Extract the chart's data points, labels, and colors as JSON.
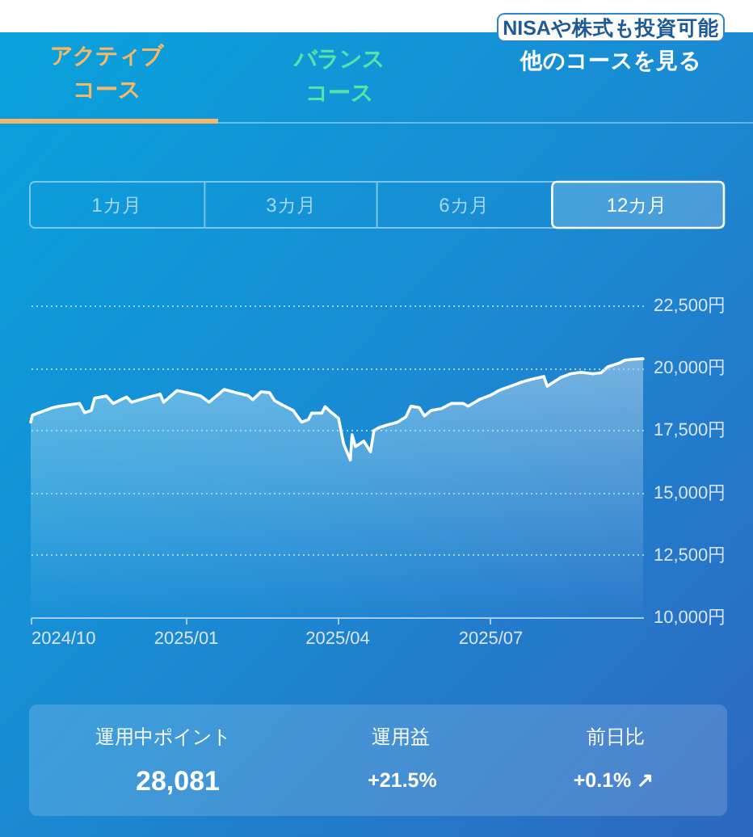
{
  "chart_data": {
    "type": "area",
    "x": [
      "2024-10-01",
      "2024-10-02",
      "2024-10-08",
      "2024-10-14",
      "2024-10-18",
      "2024-10-30",
      "2024-11-02",
      "2024-11-06",
      "2024-11-08",
      "2024-11-15",
      "2024-11-19",
      "2024-11-27",
      "2024-11-30",
      "2024-12-08",
      "2024-12-17",
      "2024-12-19",
      "2024-12-27",
      "2025-01-06",
      "2025-01-10",
      "2025-01-15",
      "2025-01-24",
      "2025-01-31",
      "2025-02-07",
      "2025-02-10",
      "2025-02-15",
      "2025-02-20",
      "2025-02-23",
      "2025-03-01",
      "2025-03-06",
      "2025-03-11",
      "2025-03-15",
      "2025-03-17",
      "2025-03-23",
      "2025-03-25",
      "2025-03-28",
      "2025-04-02",
      "2025-04-05",
      "2025-04-09",
      "2025-04-10",
      "2025-04-12",
      "2025-04-17",
      "2025-04-21",
      "2025-04-23",
      "2025-04-26",
      "2025-05-01",
      "2025-05-07",
      "2025-05-12",
      "2025-05-15",
      "2025-05-20",
      "2025-05-23",
      "2025-05-27",
      "2025-06-02",
      "2025-06-08",
      "2025-06-15",
      "2025-06-18",
      "2025-06-25",
      "2025-07-01",
      "2025-07-07",
      "2025-07-14",
      "2025-07-20",
      "2025-07-26",
      "2025-08-02",
      "2025-08-04",
      "2025-08-12",
      "2025-08-18",
      "2025-08-24",
      "2025-08-31",
      "2025-09-05",
      "2025-09-09",
      "2025-09-16",
      "2025-09-19",
      "2025-09-24",
      "2025-09-30"
    ],
    "series": [
      {
        "color": "#ffffff",
        "values": [
          17820,
          18100,
          18250,
          18400,
          18460,
          18570,
          18200,
          18290,
          18780,
          18870,
          18570,
          18830,
          18620,
          18780,
          18940,
          18620,
          19090,
          18940,
          18870,
          18620,
          19130,
          19000,
          18890,
          18720,
          19040,
          19000,
          18680,
          18460,
          18290,
          17820,
          17920,
          18180,
          18180,
          18440,
          18250,
          17970,
          16950,
          16300,
          17320,
          16840,
          17060,
          16630,
          17490,
          17600,
          17710,
          17820,
          18030,
          18460,
          18400,
          18070,
          18290,
          18360,
          18570,
          18570,
          18460,
          18740,
          18890,
          19110,
          19280,
          19430,
          19540,
          19650,
          19260,
          19610,
          19760,
          19820,
          19760,
          19800,
          20040,
          20190,
          20300,
          20340,
          20360
        ]
      }
    ],
    "xlim": [
      "2024-10-01",
      "2025-09-30"
    ],
    "xticks": [
      {
        "value": "2024-10",
        "label": "2024/10"
      },
      {
        "value": "2025-01",
        "label": "2025/01"
      },
      {
        "value": "2025-04",
        "label": "2025/04"
      },
      {
        "value": "2025-07",
        "label": "2025/07"
      }
    ],
    "ylim": [
      10000,
      22500
    ],
    "yticks": [
      {
        "value": 10000,
        "label": "10,000円"
      },
      {
        "value": 12500,
        "label": "12,500円"
      },
      {
        "value": 15000,
        "label": "15,000円"
      },
      {
        "value": 17500,
        "label": "17,500円"
      },
      {
        "value": 20000,
        "label": "20,000円"
      },
      {
        "value": 22500,
        "label": "22,500円"
      }
    ],
    "grid": "y",
    "annotations": [
      "NISAや株式も投資可能",
      "アクティブコース",
      "バランスコース",
      "他のコースを見る",
      "1カ月",
      "3カ月",
      "6カ月",
      "12カ月",
      "運用中ポイント",
      "28,081",
      "運用益",
      "+21.5%",
      "前日比",
      "+0.1% ↗"
    ]
  }
}
